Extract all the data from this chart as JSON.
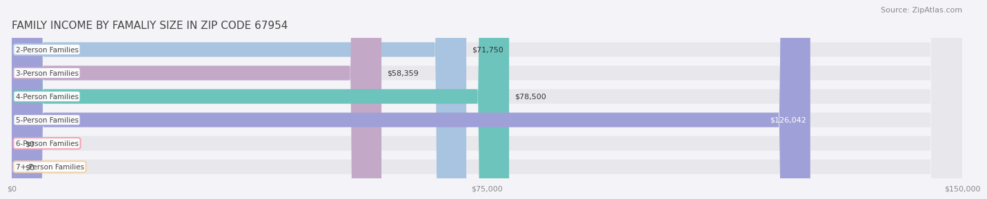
{
  "title": "FAMILY INCOME BY FAMALIY SIZE IN ZIP CODE 67954",
  "source": "Source: ZipAtlas.com",
  "categories": [
    "2-Person Families",
    "3-Person Families",
    "4-Person Families",
    "5-Person Families",
    "6-Person Families",
    "7+ Person Families"
  ],
  "values": [
    71750,
    58359,
    78500,
    126042,
    0,
    0
  ],
  "bar_colors": [
    "#a8c4e0",
    "#c4a8c8",
    "#6cc4bc",
    "#a0a0d8",
    "#f4a0b0",
    "#f4d0a0"
  ],
  "bar_bg_color": "#e8e8ec",
  "xlim": [
    0,
    150000
  ],
  "xticks": [
    0,
    75000,
    150000
  ],
  "xtick_labels": [
    "$0",
    "$75,000",
    "$150,000"
  ],
  "title_fontsize": 11,
  "source_fontsize": 8,
  "bar_label_fontsize": 7.5,
  "value_fontsize": 8,
  "background_color": "#f4f4f8",
  "bar_height": 0.62
}
